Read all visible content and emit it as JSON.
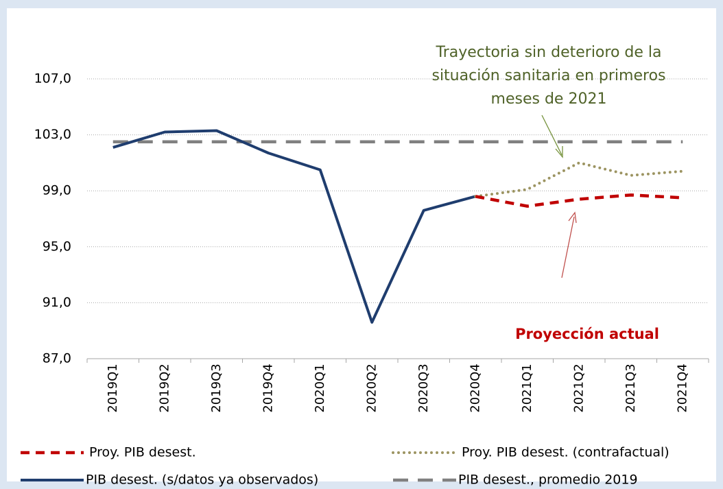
{
  "chart_data": {
    "type": "line",
    "categories": [
      "2019Q1",
      "2019Q2",
      "2019Q3",
      "2019Q4",
      "2020Q1",
      "2020Q2",
      "2020Q3",
      "2020Q4",
      "2021Q1",
      "2021Q2",
      "2021Q3",
      "2021Q4"
    ],
    "series": [
      {
        "name": "Proy. PIB desest.",
        "color": "#c00000",
        "style": "dashed",
        "values": [
          null,
          null,
          null,
          null,
          null,
          null,
          null,
          98.6,
          97.9,
          98.4,
          98.7,
          98.5
        ]
      },
      {
        "name": "Proy. PIB desest. (contrafactual)",
        "color": "#9c9461",
        "style": "dotted",
        "values": [
          null,
          null,
          null,
          null,
          null,
          null,
          null,
          98.6,
          99.1,
          101.0,
          100.1,
          100.4
        ]
      },
      {
        "name": "PIB desest. (s/datos ya observados)",
        "color": "#1f3d6e",
        "style": "solid",
        "values": [
          102.1,
          103.2,
          103.3,
          101.7,
          100.5,
          89.6,
          97.6,
          98.6,
          null,
          null,
          null,
          null
        ]
      },
      {
        "name": "PIB desest., promedio 2019",
        "color": "#808080",
        "style": "longdash",
        "values": [
          102.5,
          102.5,
          102.5,
          102.5,
          102.5,
          102.5,
          102.5,
          102.5,
          102.5,
          102.5,
          102.5,
          102.5
        ]
      }
    ],
    "ylim": [
      87,
      107
    ],
    "yticks": [
      {
        "value": 87,
        "label": "87,0"
      },
      {
        "value": 91,
        "label": "91,0"
      },
      {
        "value": 95,
        "label": "95,0"
      },
      {
        "value": 99,
        "label": "99,0"
      },
      {
        "value": 103,
        "label": "103,0"
      },
      {
        "value": 107,
        "label": "107,0"
      }
    ],
    "grid": true,
    "annotations": [
      [
        "Trayectoria sin deterioro de la",
        "situación sanitaria en primeros",
        "meses de 2021"
      ],
      [
        "Proyección actual"
      ]
    ]
  }
}
